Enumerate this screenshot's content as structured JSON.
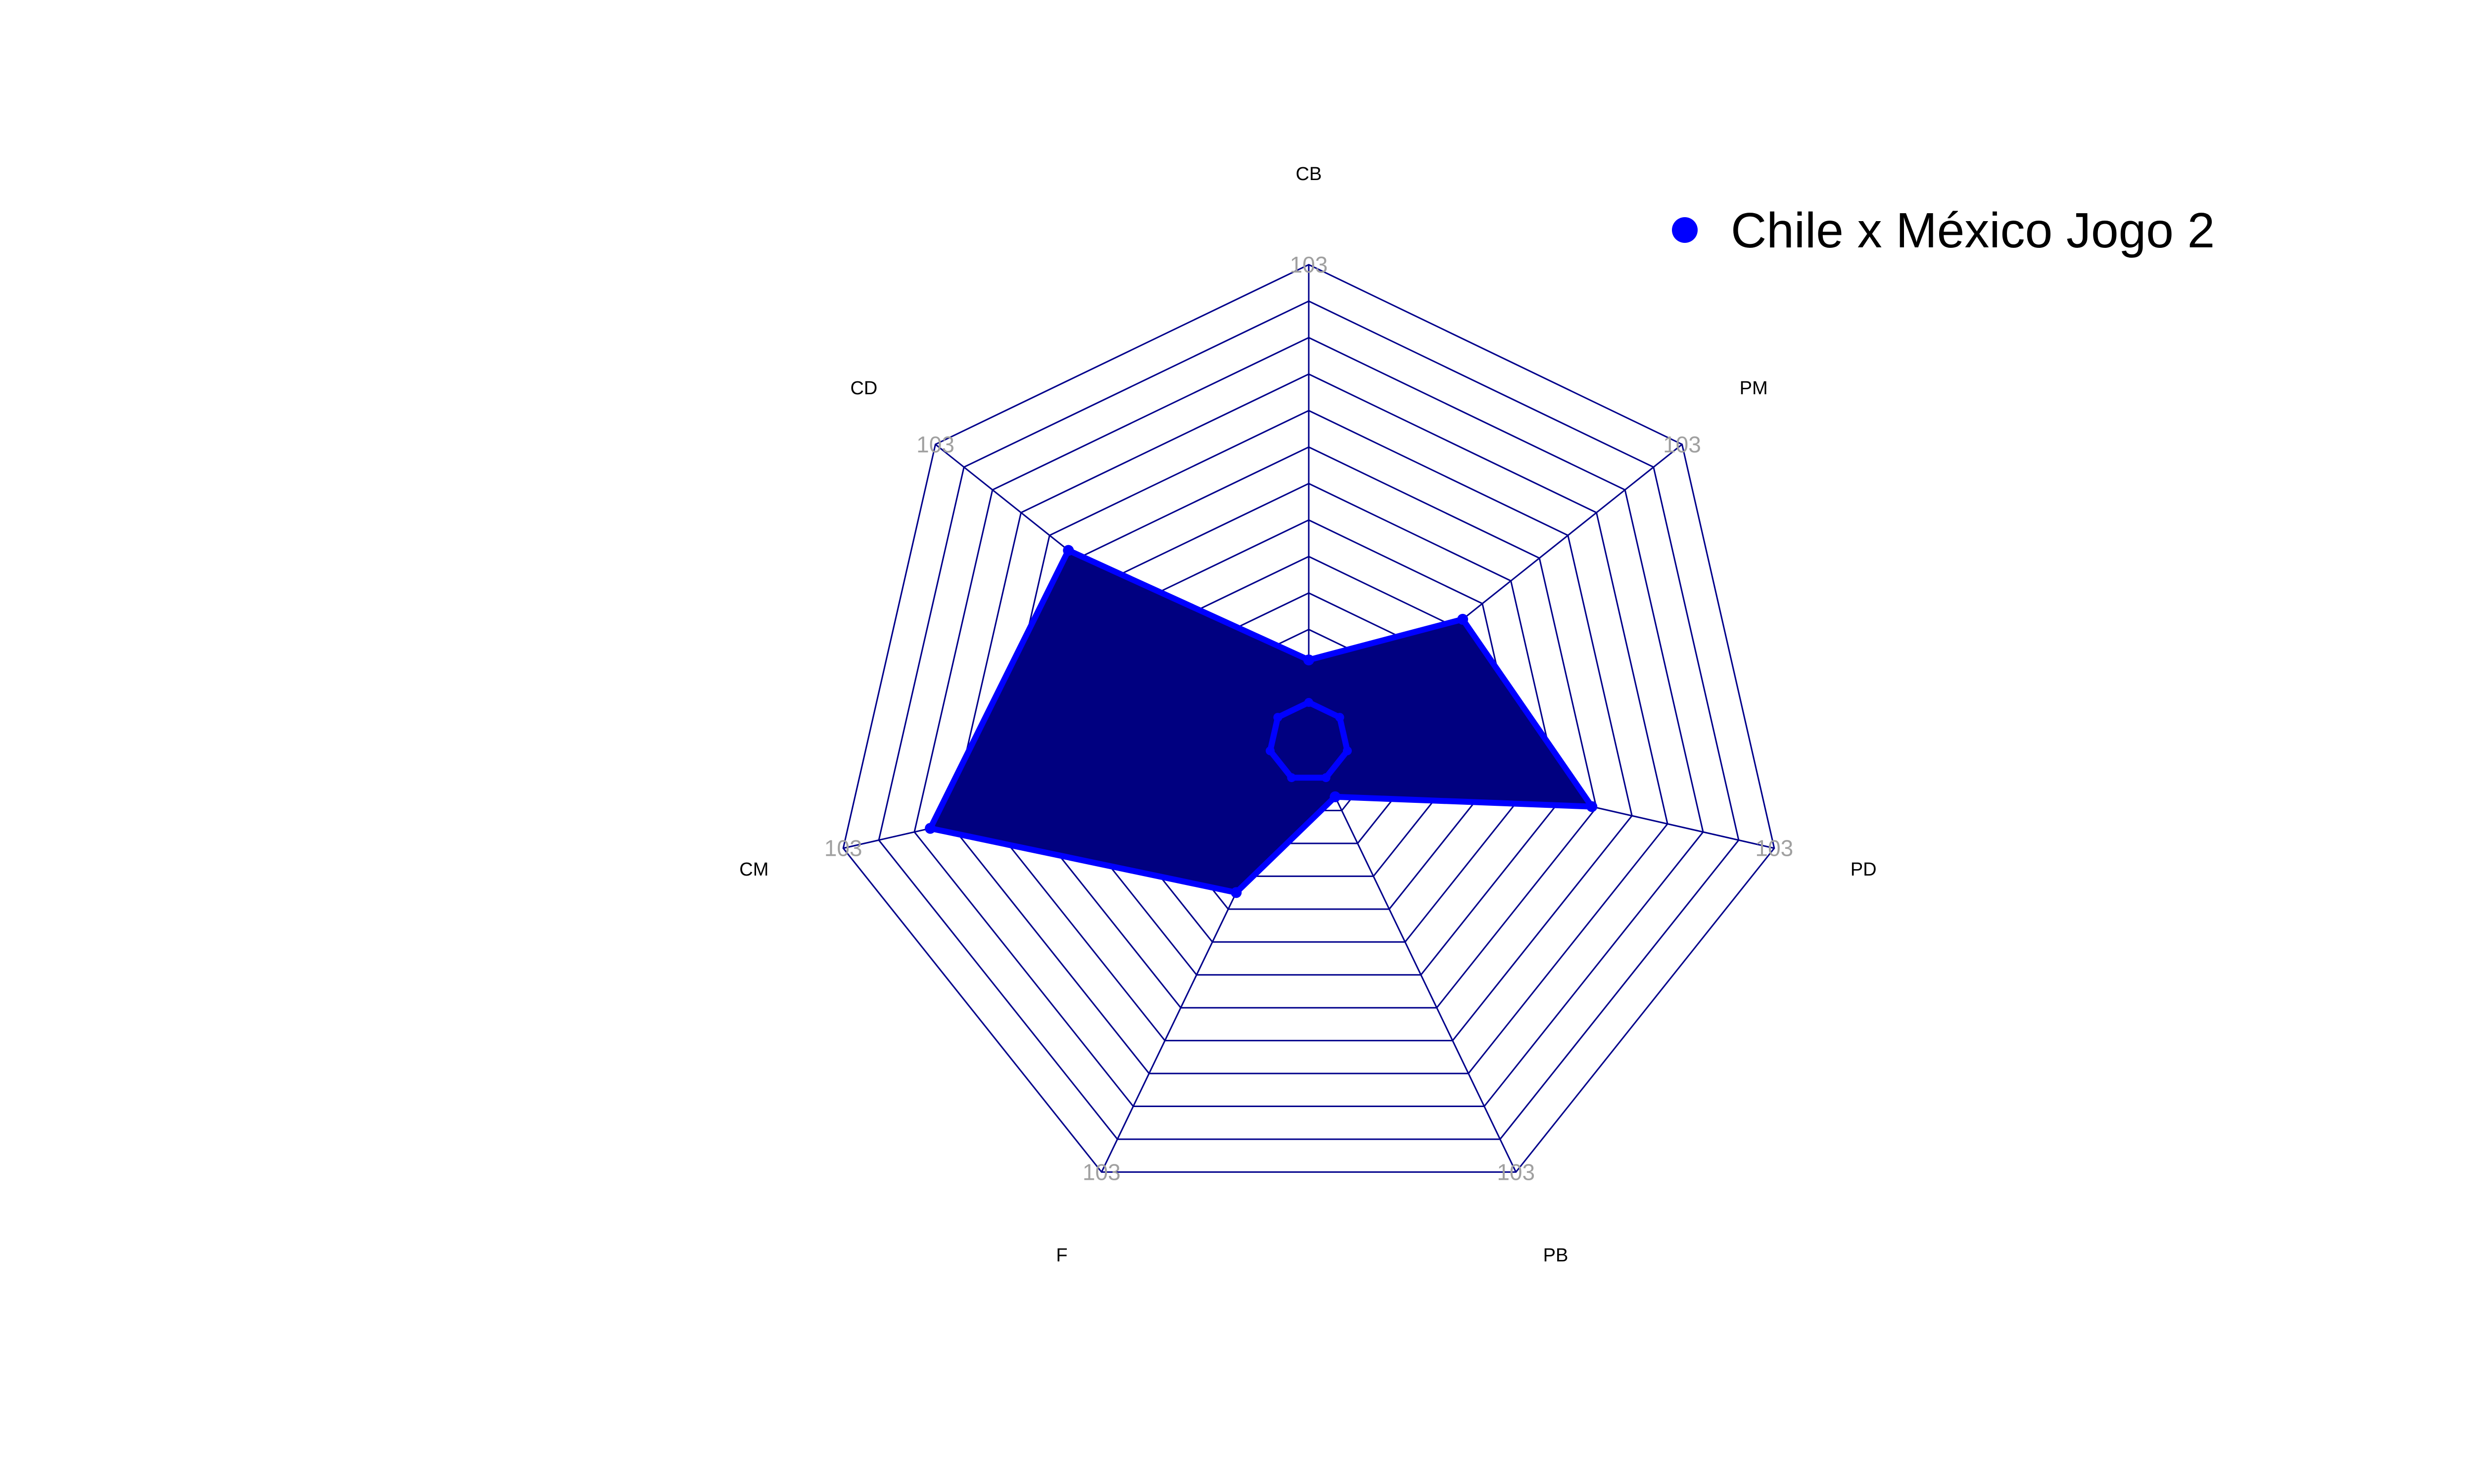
{
  "chart_data": {
    "type": "radar",
    "axes": [
      "CB",
      "PM",
      "PD",
      "PB",
      "F",
      "CM",
      "CD"
    ],
    "range": [
      0,
      103
    ],
    "grid_levels": 12,
    "max_tick_label": "103",
    "series": [
      {
        "name": "Chile x México Jogo 2",
        "values": [
          10,
          37,
          59,
          5,
          30,
          82,
          63
        ],
        "color": "#0000ff",
        "fill": "#000080"
      }
    ],
    "legend_position": "top-right",
    "grid_color": "#00008b"
  }
}
